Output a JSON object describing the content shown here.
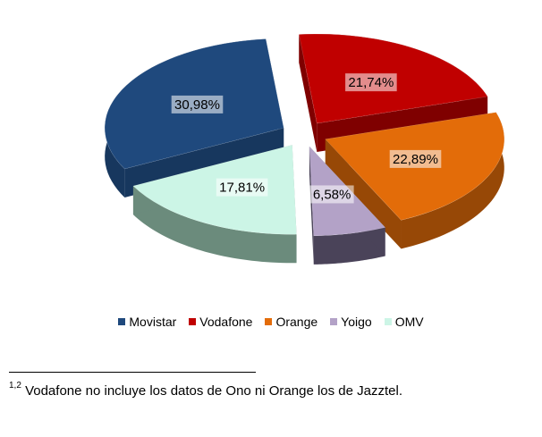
{
  "chart_data": {
    "type": "pie",
    "title": "",
    "slices": [
      {
        "name": "Movistar",
        "value": 30.98,
        "label": "30,98%",
        "color": "#1f497d",
        "side": "#17375e"
      },
      {
        "name": "Vodafone",
        "value": 21.74,
        "label": "21,74%",
        "color": "#c00000",
        "side": "#7f0000"
      },
      {
        "name": "Orange",
        "value": 22.89,
        "label": "22,89%",
        "color": "#e36c09",
        "side": "#974806"
      },
      {
        "name": "Yoigo",
        "value": 6.58,
        "label": "6,58%",
        "color": "#b3a2c7",
        "side": "#4a4359"
      },
      {
        "name": "OMV",
        "value": 17.81,
        "label": "17,81%",
        "color": "#ccf5e6",
        "side": "#6b8b7c"
      }
    ],
    "legend_position": "bottom"
  },
  "legend": [
    {
      "label": "Movistar",
      "color": "#1f497d"
    },
    {
      "label": "Vodafone",
      "color": "#c00000"
    },
    {
      "label": "Orange",
      "color": "#e36c09"
    },
    {
      "label": "Yoigo",
      "color": "#b3a2c7"
    },
    {
      "label": "OMV",
      "color": "#ccf5e6"
    }
  ],
  "footnote": {
    "sup": "1,2",
    "text": " Vodafone no incluye los datos de Ono ni Orange los de Jazztel."
  }
}
